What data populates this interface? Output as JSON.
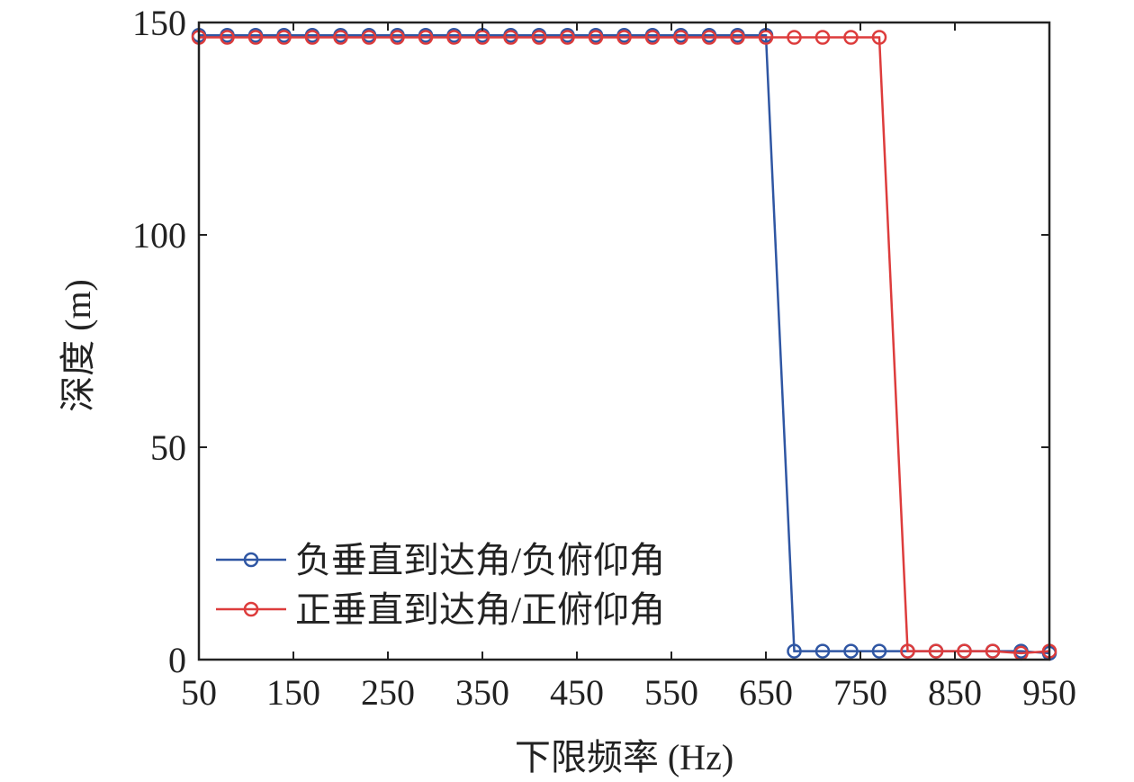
{
  "chart_data": {
    "type": "line",
    "title": "",
    "xlabel": "下限频率 (Hz)",
    "ylabel": "深度 (m)",
    "xlim": [
      50,
      950
    ],
    "ylim": [
      0,
      150
    ],
    "xticks": [
      "50",
      "150",
      "250",
      "350",
      "450",
      "550",
      "650",
      "750",
      "850",
      "950"
    ],
    "yticks": [
      "0",
      "50",
      "100",
      "150"
    ],
    "grid": false,
    "legend_position": "lower-left",
    "x": [
      50,
      80,
      110,
      140,
      170,
      200,
      230,
      260,
      290,
      320,
      350,
      380,
      410,
      440,
      470,
      500,
      530,
      560,
      590,
      620,
      650,
      680,
      710,
      740,
      770,
      800,
      830,
      860,
      890,
      920,
      950
    ],
    "series": [
      {
        "name": "负垂直到达角/负俯仰角",
        "color": "#2f56a3",
        "values": [
          147,
          147,
          147,
          147,
          147,
          147,
          147,
          147,
          147,
          147,
          147,
          147,
          147,
          147,
          147,
          147,
          147,
          147,
          147,
          147,
          147,
          2,
          2,
          2,
          2,
          2,
          2,
          2,
          2,
          2,
          1.5
        ]
      },
      {
        "name": "正垂直到达角/正俯仰角",
        "color": "#dd3c3c",
        "values": [
          146.5,
          146.5,
          146.5,
          146.5,
          146.5,
          146.5,
          146.5,
          146.5,
          146.5,
          146.5,
          146.5,
          146.5,
          146.5,
          146.5,
          146.5,
          146.5,
          146.5,
          146.5,
          146.5,
          146.5,
          146.5,
          146.5,
          146.5,
          146.5,
          146.5,
          2,
          2,
          2,
          2,
          1.5,
          2
        ]
      }
    ]
  }
}
